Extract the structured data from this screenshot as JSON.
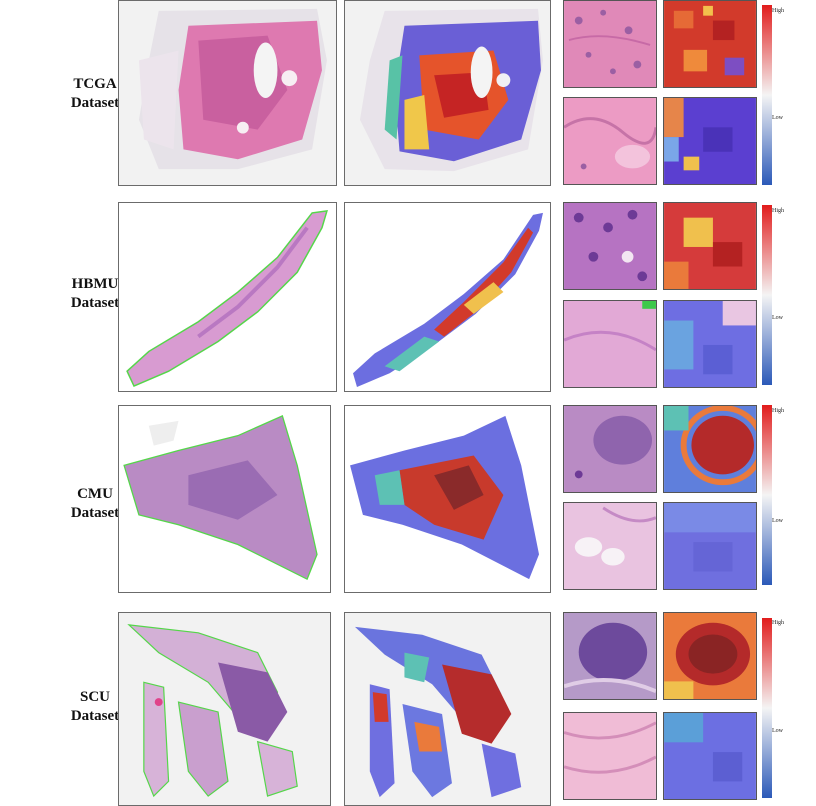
{
  "rows": [
    {
      "label_line1": "TCGA",
      "label_line2": "Dataset"
    },
    {
      "label_line1": "HBMU",
      "label_line2": "Dataset"
    },
    {
      "label_line1": "CMU",
      "label_line2": "Dataset"
    },
    {
      "label_line1": "SCU",
      "label_line2": "Dataset"
    }
  ],
  "colorbar": {
    "high_label": "High",
    "low_label": "Low",
    "high_color": "#e11d1d",
    "low_color": "#2b59b8"
  },
  "colors": {
    "he_pink": "#e38ab8",
    "he_purple": "#b98bc4",
    "heat_red": "#d22b2b",
    "heat_blue": "#5b63d6",
    "heat_yellow": "#f1d35a"
  }
}
